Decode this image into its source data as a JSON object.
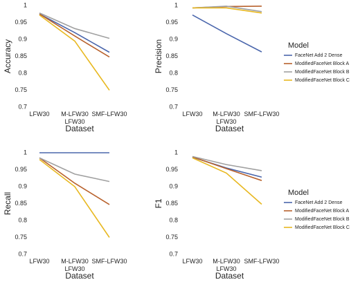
{
  "chart_data": [
    {
      "type": "line",
      "x_label": "Dataset",
      "y_label": "Accuracy",
      "categories": [
        "LFW30",
        "M-LFW30\nLFW30",
        "SMF-LFW30"
      ],
      "ylim": [
        0.7,
        1
      ],
      "yticks": [
        0.7,
        0.75,
        0.8,
        0.85,
        0.9,
        0.95,
        1
      ],
      "series": [
        {
          "name": "FaceNet Add 2 Dense",
          "color": "#4a66ac",
          "values": [
            0.975,
            0.92,
            0.862
          ]
        },
        {
          "name": "ModifiedFaceNet Block A",
          "color": "#b8612c",
          "values": [
            0.975,
            0.91,
            0.848
          ]
        },
        {
          "name": "ModifiedFaceNet Block B",
          "color": "#a0a0a0",
          "values": [
            0.978,
            0.932,
            0.903
          ]
        },
        {
          "name": "ModifiedFaceNet Block C",
          "color": "#e8b820",
          "values": [
            0.972,
            0.895,
            0.75
          ]
        }
      ]
    },
    {
      "type": "line",
      "x_label": "Dataset",
      "y_label": "Precision",
      "categories": [
        "LFW30",
        "M-LFW30\nLFW30",
        "SMF-LFW30"
      ],
      "ylim": [
        0.7,
        1
      ],
      "yticks": [
        0.7,
        0.75,
        0.8,
        0.85,
        0.9,
        0.95,
        1
      ],
      "legend": "right",
      "legend_title": "Model",
      "series": [
        {
          "name": "FaceNet Add 2 Dense",
          "color": "#4a66ac",
          "values": [
            0.972,
            0.917,
            0.863
          ]
        },
        {
          "name": "ModifiedFaceNet Block A",
          "color": "#b8612c",
          "values": [
            0.993,
            0.997,
            0.998
          ]
        },
        {
          "name": "ModifiedFaceNet Block B",
          "color": "#a0a0a0",
          "values": [
            0.993,
            0.998,
            0.982
          ]
        },
        {
          "name": "ModifiedFaceNet Block C",
          "color": "#e8b820",
          "values": [
            0.993,
            0.993,
            0.978
          ]
        }
      ]
    },
    {
      "type": "line",
      "x_label": "Dataset",
      "y_label": "Recall",
      "categories": [
        "LFW30",
        "M-LFW30\nLFW30",
        "SMF-LFW30"
      ],
      "ylim": [
        0.7,
        1
      ],
      "yticks": [
        0.7,
        0.75,
        0.8,
        0.85,
        0.9,
        0.95,
        1
      ],
      "series": [
        {
          "name": "FaceNet Add 2 Dense",
          "color": "#4a66ac",
          "values": [
            1,
            1,
            1
          ]
        },
        {
          "name": "ModifiedFaceNet Block A",
          "color": "#b8612c",
          "values": [
            0.985,
            0.91,
            0.847
          ]
        },
        {
          "name": "ModifiedFaceNet Block B",
          "color": "#a0a0a0",
          "values": [
            0.985,
            0.937,
            0.915
          ]
        },
        {
          "name": "ModifiedFaceNet Block C",
          "color": "#e8b820",
          "values": [
            0.98,
            0.9,
            0.75
          ]
        }
      ]
    },
    {
      "type": "line",
      "x_label": "Dataset",
      "y_label": "F1",
      "categories": [
        "LFW30",
        "M-LFW30\nLFW30",
        "SMF-LFW30"
      ],
      "ylim": [
        0.7,
        1
      ],
      "yticks": [
        0.7,
        0.75,
        0.8,
        0.85,
        0.9,
        0.95,
        1
      ],
      "legend": "right",
      "legend_title": "Model",
      "series": [
        {
          "name": "FaceNet Add 2 Dense",
          "color": "#4a66ac",
          "values": [
            0.987,
            0.955,
            0.928
          ]
        },
        {
          "name": "ModifiedFaceNet Block A",
          "color": "#b8612c",
          "values": [
            0.988,
            0.953,
            0.918
          ]
        },
        {
          "name": "ModifiedFaceNet Block B",
          "color": "#a0a0a0",
          "values": [
            0.989,
            0.965,
            0.947
          ]
        },
        {
          "name": "ModifiedFaceNet Block C",
          "color": "#e8b820",
          "values": [
            0.985,
            0.94,
            0.848
          ]
        }
      ]
    }
  ]
}
